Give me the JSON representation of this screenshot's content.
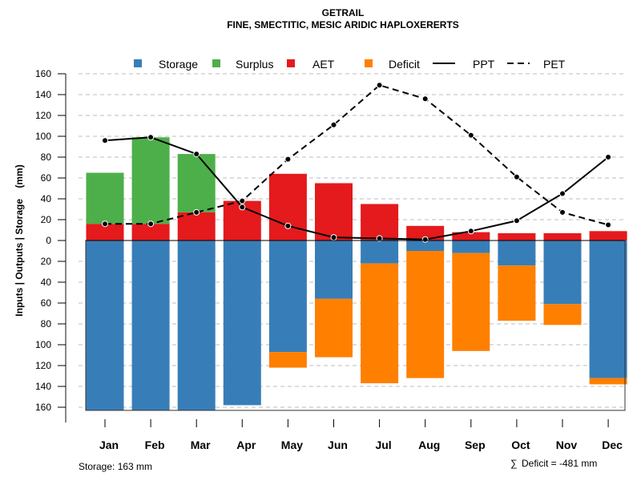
{
  "chart_data": {
    "type": "bar",
    "title": "GETRAIL",
    "subtitle": "FINE, SMECTITIC, MESIC ARIDIC HAPLOXERERTS",
    "xlabel": "",
    "ylabel": "Inputs | Outputs | Storage    (mm)",
    "ylim": [
      -163,
      160
    ],
    "yticks": [
      160,
      140,
      120,
      100,
      80,
      60,
      40,
      20,
      0,
      20,
      40,
      60,
      80,
      100,
      120,
      140,
      160
    ],
    "grid": true,
    "legend_position": "top",
    "categories": [
      "Jan",
      "Feb",
      "Mar",
      "Apr",
      "May",
      "Jun",
      "Jul",
      "Aug",
      "Sep",
      "Oct",
      "Nov",
      "Dec"
    ],
    "series": [
      {
        "name": "Storage",
        "kind": "bar-below",
        "color": "#377EB8",
        "values": [
          163,
          163,
          163,
          158,
          107,
          56,
          22,
          10,
          12,
          24,
          61,
          132
        ]
      },
      {
        "name": "Surplus",
        "kind": "bar-above",
        "color": "#4DAF4A",
        "values": [
          49,
          83,
          56,
          0,
          0,
          0,
          0,
          0,
          0,
          0,
          0,
          0
        ]
      },
      {
        "name": "AET",
        "kind": "bar-above",
        "color": "#E41A1C",
        "values": [
          16,
          16,
          27,
          38,
          64,
          55,
          35,
          14,
          8,
          7,
          7,
          9
        ]
      },
      {
        "name": "Deficit",
        "kind": "bar-below",
        "color": "#FF7F00",
        "values": [
          0,
          0,
          0,
          0,
          15,
          56,
          115,
          122,
          94,
          53,
          20,
          6
        ]
      },
      {
        "name": "PPT",
        "kind": "line-solid",
        "color": "#000000",
        "values": [
          96,
          99,
          83,
          32,
          14,
          3,
          2,
          1,
          9,
          19,
          45,
          80
        ]
      },
      {
        "name": "PET",
        "kind": "line-dashed",
        "color": "#000000",
        "values": [
          16,
          16,
          27,
          38,
          78,
          111,
          149,
          136,
          101,
          61,
          27,
          15
        ]
      }
    ],
    "annotations": {
      "storage": "Storage: 163 mm",
      "deficit_sum": "Deficit = -481 mm",
      "deficit_symbol": "∑"
    }
  }
}
